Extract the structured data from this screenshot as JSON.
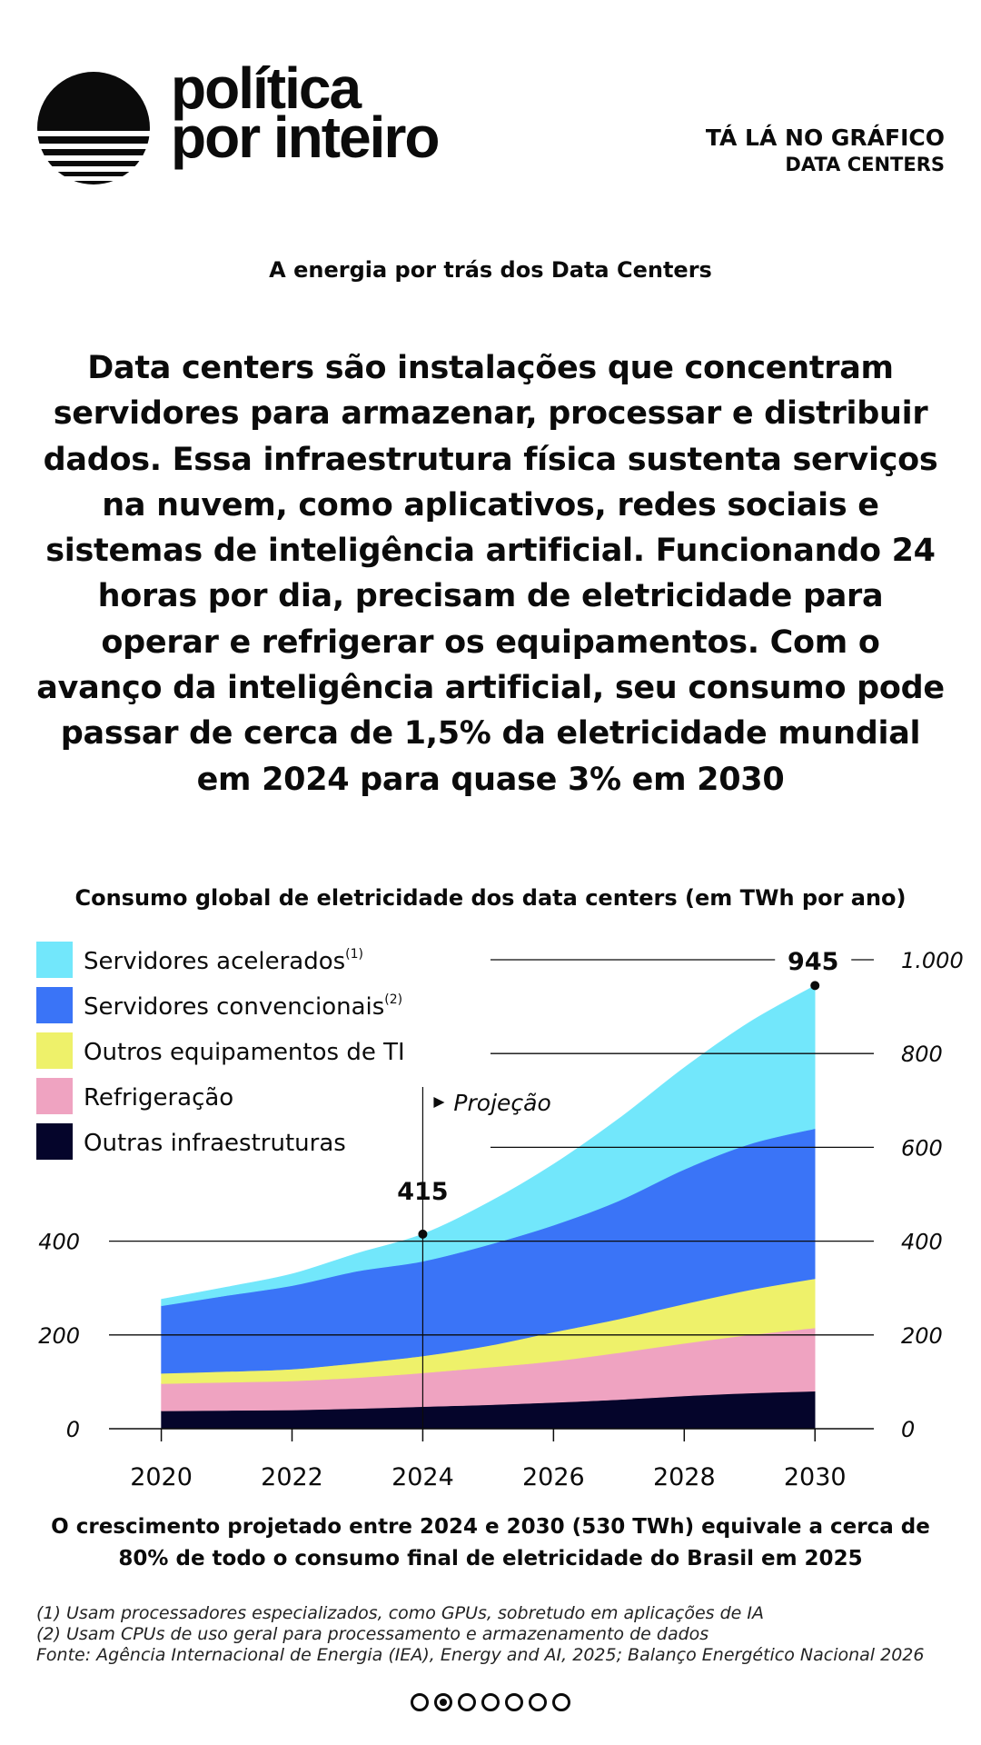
{
  "brand": {
    "line1": "política",
    "line2": "por inteiro"
  },
  "section": {
    "line1": "TÁ LÁ NO GRÁFICO",
    "line2": "DATA CENTERS"
  },
  "kicker": "A energia por trás dos Data Centers",
  "lead": "Data centers são instalações que concentram servidores para armazenar, processar e distribuir dados. Essa infraestrutura física sustenta serviços na nuvem, como aplicativos, redes sociais e sistemas de inteligência artificial. Funcionando 24 horas por dia, precisam de eletricidade para operar e refrigerar os equipamentos. Com o avanço da inteligência artificial, seu consumo pode passar de cerca de 1,5% da eletricidade mundial em 2024 para quase 3% em 2030",
  "chart_data": {
    "type": "area",
    "title": "Consumo global de eletricidade dos data centers (em TWh por ano)",
    "x": [
      2020,
      2021,
      2022,
      2023,
      2024,
      2025,
      2026,
      2027,
      2028,
      2029,
      2030
    ],
    "x_ticks": [
      "2020",
      "2022",
      "2024",
      "2026",
      "2028",
      "2030"
    ],
    "xlim": [
      2019.2,
      2030.9
    ],
    "ylim": [
      0,
      1000
    ],
    "left_axis_ticks": [
      {
        "value": 0,
        "label": "0"
      },
      {
        "value": 200,
        "label": "200"
      },
      {
        "value": 400,
        "label": "400"
      }
    ],
    "right_axis_ticks": [
      {
        "value": 0,
        "label": "0"
      },
      {
        "value": 200,
        "label": "200"
      },
      {
        "value": 400,
        "label": "400"
      },
      {
        "value": 600,
        "label": "600"
      },
      {
        "value": 800,
        "label": "800"
      },
      {
        "value": 1000,
        "label": "1.000"
      }
    ],
    "grid": true,
    "stacked": true,
    "series": [
      {
        "name": "Outras infraestruturas",
        "color": "#05052b",
        "values": [
          38,
          39,
          40,
          43,
          47,
          51,
          56,
          62,
          70,
          76,
          80
        ]
      },
      {
        "name": "Refrigeração",
        "color": "#efa3c1",
        "values": [
          58,
          60,
          62,
          66,
          72,
          80,
          88,
          100,
          112,
          124,
          135
        ]
      },
      {
        "name": "Outros equipamentos de TI",
        "color": "#eef16a",
        "values": [
          22,
          23,
          25,
          31,
          36,
          46,
          62,
          72,
          84,
          96,
          105
        ]
      },
      {
        "name": "Servidores convencionais",
        "color": "#3a74f7",
        "sup": "(2)",
        "values": [
          144,
          162,
          178,
          196,
          202,
          215,
          228,
          252,
          287,
          311,
          320
        ]
      },
      {
        "name": "Servidores acelerados",
        "color": "#72e7fb",
        "sup": "(1)",
        "values": [
          14,
          18,
          25,
          38,
          58,
          90,
          130,
          175,
          217,
          260,
          305
        ]
      }
    ],
    "annotations": [
      {
        "year": 2024,
        "value": 415,
        "label": "415"
      },
      {
        "year": 2030,
        "value": 945,
        "label": "945"
      }
    ],
    "projection_label": "Projeção",
    "projection_start": 2024
  },
  "note": "O crescimento projetado entre 2024 e 2030 (530 TWh) equivale a cerca de 80% de todo o consumo final de eletricidade do Brasil em 2025",
  "footnotes": [
    "(1) Usam processadores especializados, como GPUs, sobretudo em aplicações de IA",
    "(2) Usam CPUs de uso geral para processamento e armazenamento de dados",
    "Fonte: Agência Internacional de Energia (IEA), Energy and AI, 2025; Balanço Energético Nacional 2026"
  ],
  "pager": {
    "count": 7,
    "active": 1
  }
}
